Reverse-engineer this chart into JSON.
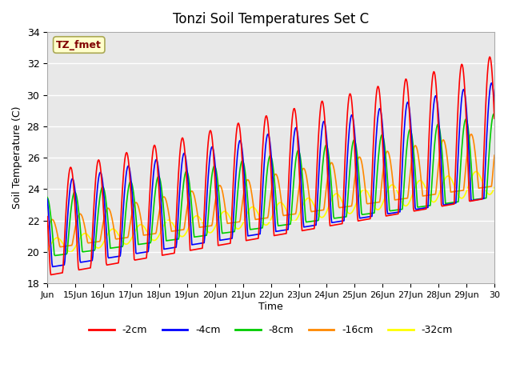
{
  "title": "Tonzi Soil Temperatures Set C",
  "xlabel": "Time",
  "ylabel": "Soil Temperature (C)",
  "ylim": [
    18,
    34
  ],
  "annotation_text": "TZ_fmet",
  "annotation_bg": "#ffffcc",
  "annotation_fg": "#800000",
  "background_color": "#e8e8e8",
  "line_colors": {
    "-2cm": "#ff0000",
    "-4cm": "#0000ff",
    "-8cm": "#00cc00",
    "-16cm": "#ff8800",
    "-32cm": "#ffff00"
  },
  "legend_labels": [
    "-2cm",
    "-4cm",
    "-8cm",
    "-16cm",
    "-32cm"
  ],
  "tick_labels": [
    "Jun",
    "15Jun",
    "16Jun",
    "17Jun",
    "18Jun",
    "19Jun",
    "20Jun",
    "21Jun",
    "22Jun",
    "23Jun",
    "24Jun",
    "25Jun",
    "26Jun",
    "27Jun",
    "28Jun",
    "29Jun",
    "30"
  ],
  "yticks": [
    18,
    20,
    22,
    24,
    26,
    28,
    30,
    32,
    34
  ]
}
